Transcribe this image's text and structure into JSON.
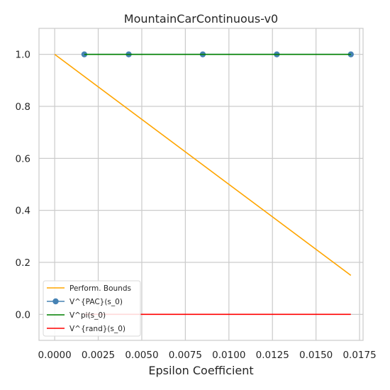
{
  "chart_data": {
    "type": "line",
    "title": "MountainCarContinuous-v0",
    "xlabel": "Epsilon Coefficient",
    "ylabel": "",
    "xlim": [
      -0.0009,
      0.0177
    ],
    "ylim": [
      -0.1,
      1.1
    ],
    "x_ticks": [
      0.0,
      0.0025,
      0.005,
      0.0075,
      0.01,
      0.0125,
      0.015,
      0.0175
    ],
    "x_tick_labels": [
      "0.0000",
      "0.0025",
      "0.0050",
      "0.0075",
      "0.0100",
      "0.0125",
      "0.0150",
      "0.0175"
    ],
    "y_ticks": [
      0.0,
      0.2,
      0.4,
      0.6,
      0.8,
      1.0
    ],
    "y_tick_labels": [
      "0.0",
      "0.2",
      "0.4",
      "0.6",
      "0.8",
      "1.0"
    ],
    "grid": true,
    "legend_position": "lower-left",
    "series": [
      {
        "name": "Perform. Bounds",
        "color": "#ffa500",
        "marker": false,
        "x": [
          0.0,
          0.017
        ],
        "y": [
          1.0,
          0.15
        ]
      },
      {
        "name": "V^{PAC}(s_0)",
        "color": "#4682b4",
        "marker": true,
        "x": [
          0.0017,
          0.00425,
          0.0085,
          0.01275,
          0.017
        ],
        "y": [
          1.0,
          1.0,
          1.0,
          1.0,
          1.0
        ]
      },
      {
        "name": "V^pi(s_0)",
        "color": "#008000",
        "marker": false,
        "x": [
          0.0017,
          0.017
        ],
        "y": [
          1.0,
          1.0
        ]
      },
      {
        "name": "V^{rand}(s_0)",
        "color": "#ff0000",
        "marker": false,
        "x": [
          0.0017,
          0.017
        ],
        "y": [
          0.0,
          0.0
        ]
      }
    ]
  }
}
